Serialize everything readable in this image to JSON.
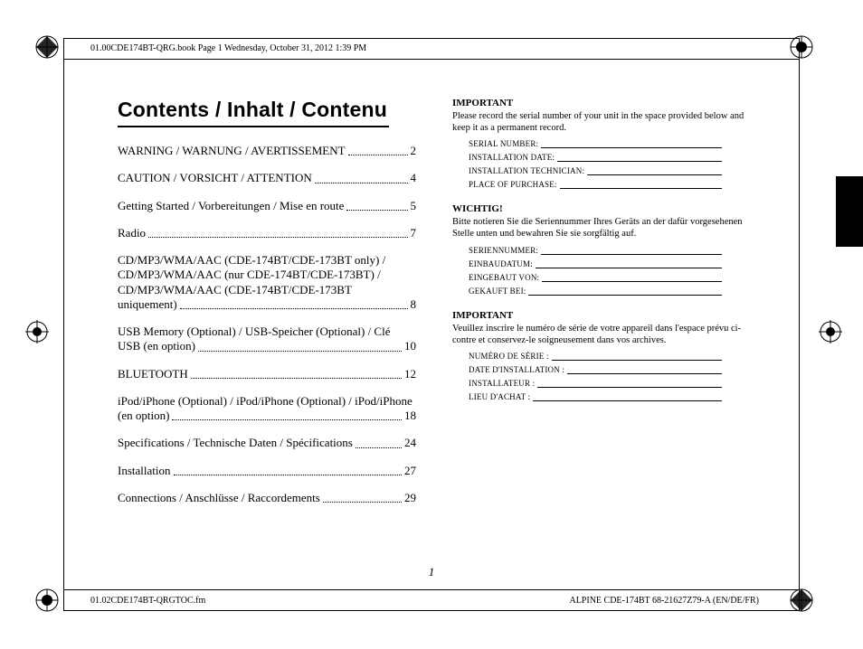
{
  "header_text": "01.00CDE174BT-QRG.book  Page 1  Wednesday, October 31, 2012  1:39 PM",
  "footer_left": "01.02CDE174BT-QRGTOC.fm",
  "footer_right": "ALPINE CDE-174BT 68-21627Z79-A (EN/DE/FR)",
  "page_number": "1",
  "title": "Contents / Inhalt / Contenu",
  "toc": [
    {
      "text": "WARNING / WARNUNG / AVERTISSEMENT",
      "page": "2"
    },
    {
      "text": "CAUTION / VORSICHT / ATTENTION",
      "page": "4"
    },
    {
      "text": "Getting Started / Vorbereitungen / Mise en route",
      "page": "5"
    },
    {
      "text": "Radio",
      "page": "7"
    },
    {
      "text": "CD/MP3/WMA/AAC (CDE-174BT/CDE-173BT only) / CD/MP3/WMA/AAC (nur CDE-174BT/CDE-173BT) / CD/MP3/WMA/AAC (CDE-174BT/CDE-173BT uniquement)",
      "page": "8"
    },
    {
      "text": "USB Memory (Optional) / USB-Speicher (Optional) / Clé USB (en option)",
      "page": "10"
    },
    {
      "text": "BLUETOOTH",
      "page": "12"
    },
    {
      "text": "iPod/iPhone (Optional) / iPod/iPhone (Optional) / iPod/iPhone (en option)",
      "page": "18"
    },
    {
      "text": "Specifications / Technische Daten / Spécifications",
      "page": "24"
    },
    {
      "text": "Installation",
      "page": "27"
    },
    {
      "text": "Connections / Anschlüsse / Raccordements",
      "page": "29"
    }
  ],
  "sections": [
    {
      "head": "IMPORTANT",
      "desc": "Please record the serial number of your unit in the space provided below and keep it as a permanent record.",
      "fields": [
        "SERIAL NUMBER:",
        "INSTALLATION DATE:",
        "INSTALLATION TECHNICIAN:",
        "PLACE OF PURCHASE:"
      ]
    },
    {
      "head": "WICHTIG!",
      "desc": "Bitte notieren Sie die Seriennummer Ihres Geräts an der dafür vorgesehenen Stelle unten und bewahren Sie sie sorgfältig auf.",
      "fields": [
        "SERIENNUMMER:",
        "EINBAUDATUM:",
        "EINGEBAUT VON:",
        "GEKAUFT BEI:"
      ]
    },
    {
      "head": "IMPORTANT",
      "desc": "Veuillez inscrire le numéro de série de votre appareil dans l'espace prévu ci-contre et conservez-le soigneusement dans vos archives.",
      "fields": [
        "NUMÉRO DE SÉRIE :",
        "DATE D'INSTALLATION :",
        "INSTALLATEUR :",
        "LIEU D'ACHAT :"
      ]
    }
  ]
}
